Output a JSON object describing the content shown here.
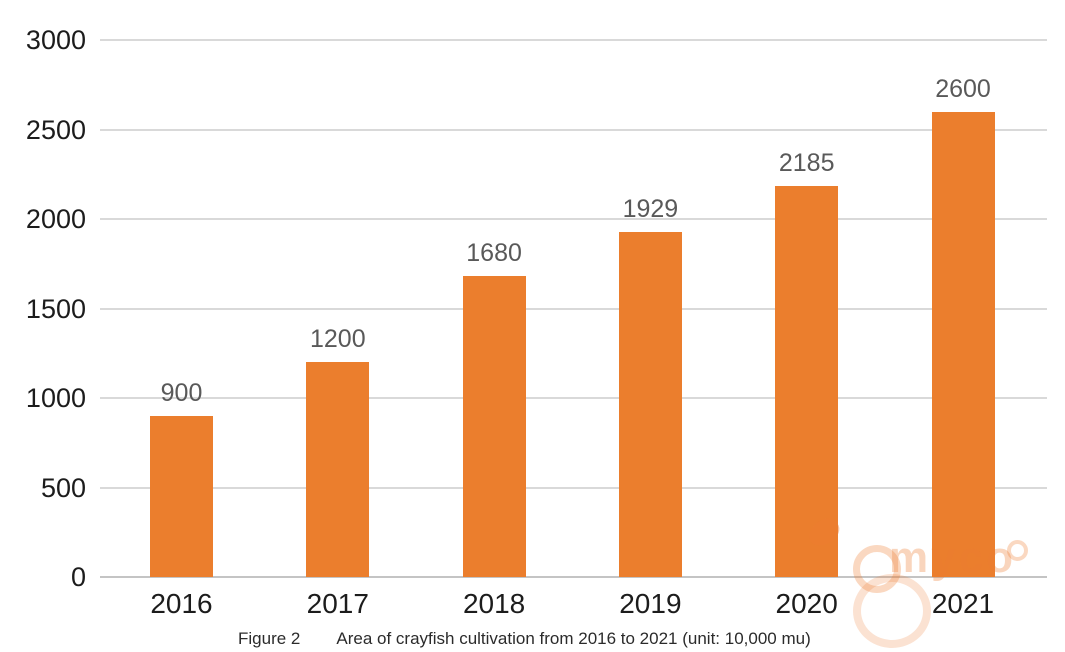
{
  "chart_data": {
    "type": "bar",
    "title": "",
    "categories": [
      "2016",
      "2017",
      "2018",
      "2019",
      "2020",
      "2021"
    ],
    "values": [
      900,
      1200,
      1680,
      1929,
      2185,
      2600
    ],
    "xlabel": "",
    "ylabel": "",
    "ylim": [
      0,
      3000
    ],
    "ytick_step": 500,
    "yticks": [
      0,
      500,
      1000,
      1500,
      2000,
      2500,
      3000
    ],
    "grid": true,
    "legend": false,
    "bar_color": "#EB7E2D",
    "value_label_color": "#595959",
    "tick_label_color": "#1c1c1c",
    "gridline_color": "#d9d9d9",
    "baseline_color": "#c4c4c4"
  },
  "caption": {
    "figure_label": "Figure 2",
    "text": "Area of crayfish cultivation from 2016 to 2021 (unit: 10,000 mu)"
  },
  "watermark": {
    "text": "myco",
    "color": "#ED7D31"
  }
}
